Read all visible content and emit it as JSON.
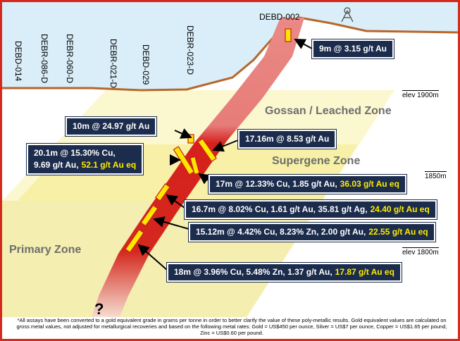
{
  "drill_holes": [
    "DEBD-014",
    "DEBR-086-D",
    "DEBR-060-D",
    "DEBR-021-D",
    "DEBD-029",
    "DEBR-023-D",
    "DEBD-002"
  ],
  "zones": [
    "Gossan / Leached Zone",
    "Supergene Zone",
    "Primary Zone"
  ],
  "elevations": [
    "elev 1900m",
    "1850m",
    "elev 1800m"
  ],
  "callouts": [
    {
      "lines": [
        "9m @ 3.15 g/t Au"
      ]
    },
    {
      "lines": [
        "10m @ 24.97 g/t Au"
      ]
    },
    {
      "lines": [
        "17.16m @ 8.53 g/t Au"
      ]
    },
    {
      "lines": [
        "20.1m @ 15.30% Cu,",
        "9.69 g/t Au,"
      ],
      "highlight": "52.1 g/t Au eq"
    },
    {
      "lines": [
        "17m @ 12.33% Cu, 1.85 g/t Au,"
      ],
      "highlight": "36.03 g/t Au eq"
    },
    {
      "lines": [
        "16.7m @ 8.02% Cu, 1.61 g/t Au, 35.81 g/t Ag,"
      ],
      "highlight": "24.40 g/t Au eq"
    },
    {
      "lines": [
        "15.12m @ 4.42% Cu, 8.23% Zn, 2.00 g/t Au,"
      ],
      "highlight": "22.55 g/t Au eq"
    },
    {
      "lines": [
        "18m @ 3.96% Cu, 5.48% Zn, 1.37 g/t Au,"
      ],
      "highlight": "17.87 g/t Au eq"
    }
  ],
  "unknown_marker": "?",
  "footnote": "*All assays have been converted to a gold equivalent grade in grams per tonne in order to better clarify the value of these poly-metallic results. Gold equivalent values are calculated on gross metal values, not adjusted for metallurgical recoveries and based on the following metal rates: Gold = US$450 per ounce, Silver = US$7 per ounce, Copper = US$1.65 per pound, Zinc = US$0.60 per pound."
}
